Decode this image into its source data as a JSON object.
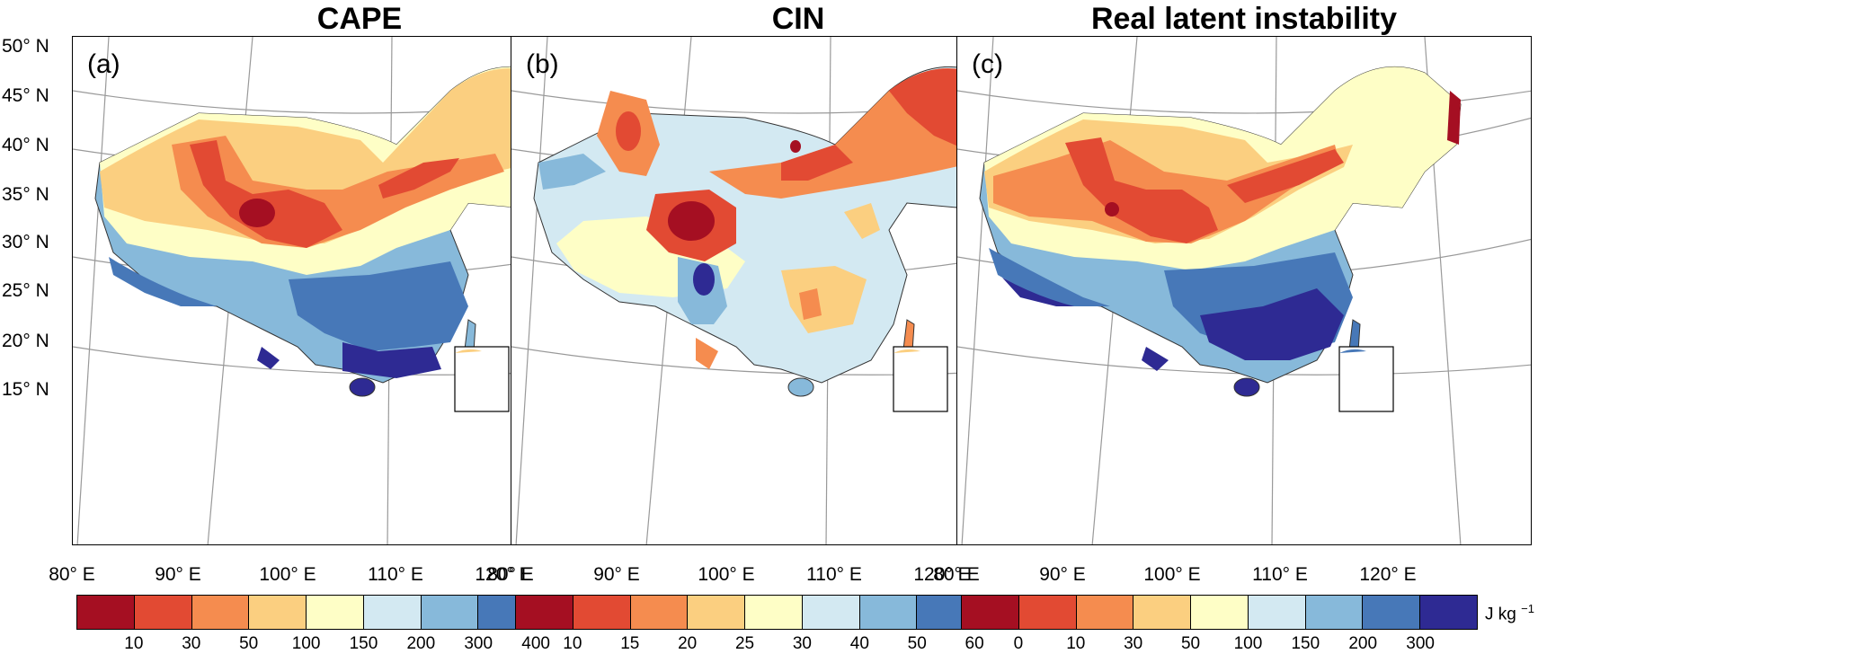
{
  "colors": {
    "levels": [
      "#a50f22",
      "#e24a33",
      "#f58c4f",
      "#fbcf80",
      "#fefec6",
      "#d3e9f2",
      "#87b9da",
      "#4778b8",
      "#2e2a93"
    ]
  },
  "latitude_labels": [
    "50° N",
    "45° N",
    "40° N",
    "35° N",
    "30° N",
    "25° N",
    "20° N",
    "15° N"
  ],
  "longitude_labels": [
    "80° E",
    "90° E",
    "100° E",
    "110° E",
    "120° E"
  ],
  "panels": [
    {
      "title": "CAPE",
      "letter": "(a)",
      "colorbar": {
        "ticks": [
          "10",
          "30",
          "50",
          "100",
          "150",
          "200",
          "300",
          "400"
        ],
        "unit": "J kg",
        "unit_exp": "−1"
      }
    },
    {
      "title": "CIN",
      "letter": "(b)",
      "colorbar": {
        "ticks": [
          "10",
          "15",
          "20",
          "25",
          "30",
          "40",
          "50",
          "60"
        ],
        "unit": "J kg",
        "unit_exp": "−1"
      }
    },
    {
      "title": "Real latent instability",
      "letter": "(c)",
      "colorbar": {
        "ticks": [
          "0",
          "10",
          "30",
          "50",
          "100",
          "150",
          "200",
          "300"
        ],
        "unit": "J kg",
        "unit_exp": "−1"
      }
    }
  ]
}
